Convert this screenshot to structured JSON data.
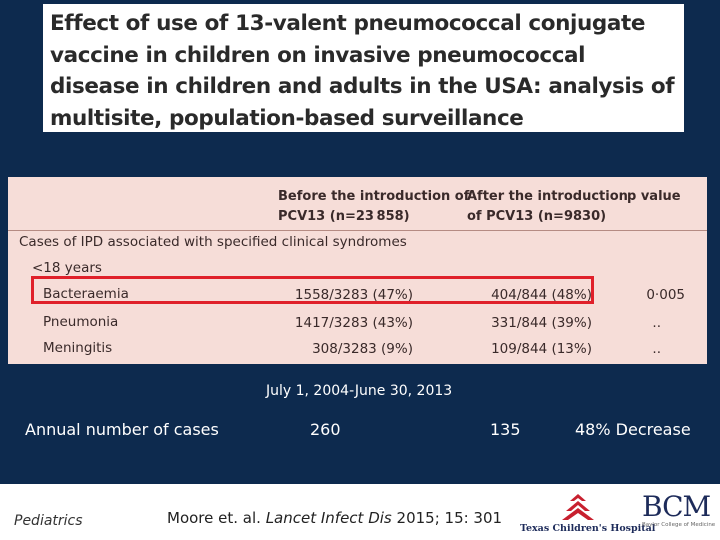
{
  "title": "Effect of use of 13-valent pneumococcal conjugate vaccine in children on invasive pneumococcal disease in children and adults in the USA: analysis of multisite, population-based surveillance",
  "table": {
    "col_before": "Before the introduction of PCV13 (n=23 858)",
    "col_before_l1": "Before the introduction of",
    "col_before_l2": "PCV13 (n=23 858)",
    "col_after_l1": "After the introduction",
    "col_after_l2": "of PCV13 (n=9830)",
    "col_p": "p value",
    "section": "Cases of IPD associated with specified clinical syndromes",
    "subgroup": "<18 years",
    "rows": [
      {
        "label": "Bacteraemia",
        "before": "1558/3283 (47%)",
        "after": "404/844 (48%)",
        "p": "0·005"
      },
      {
        "label": "Pneumonia",
        "before": "1417/3283 (43%)",
        "after": "331/844 (39%)",
        "p": ".."
      },
      {
        "label": "Meningitis",
        "before": "308/3283 (9%)",
        "after": "109/844 (13%)",
        "p": ".."
      }
    ]
  },
  "period": "July 1, 2004-June 30, 2013",
  "summary": {
    "label": "Annual number of cases",
    "before": "260",
    "after": "135",
    "change": "48% Decrease"
  },
  "footer": {
    "section": "Pediatrics",
    "citation_authors": "Moore et. al.",
    "citation_journal": "Lancet Infect Dis",
    "citation_ref": "2015; 15: 301",
    "logo_tch": "Texas Children's Hospital",
    "logo_bcm": "BCM",
    "logo_bcm_sub": "Baylor College of Medicine",
    "colors": {
      "tch_red": "#c8202f",
      "bcm_navy": "#1d2b5a",
      "background": "#0d2a4e"
    }
  }
}
